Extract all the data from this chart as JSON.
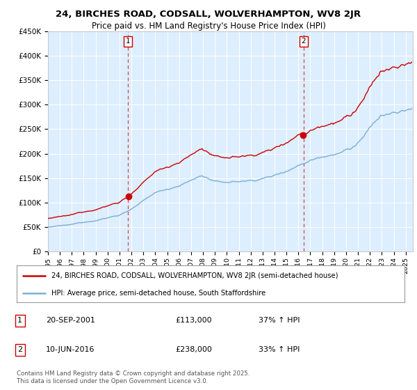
{
  "title1": "24, BIRCHES ROAD, CODSALL, WOLVERHAMPTON, WV8 2JR",
  "title2": "Price paid vs. HM Land Registry's House Price Index (HPI)",
  "legend_line1": "24, BIRCHES ROAD, CODSALL, WOLVERHAMPTON, WV8 2JR (semi-detached house)",
  "legend_line2": "HPI: Average price, semi-detached house, South Staffordshire",
  "annotation1_date": "20-SEP-2001",
  "annotation1_price": "£113,000",
  "annotation1_hpi": "37% ↑ HPI",
  "annotation2_date": "10-JUN-2016",
  "annotation2_price": "£238,000",
  "annotation2_hpi": "33% ↑ HPI",
  "sale1_year": 2001.72,
  "sale1_value": 113000,
  "sale2_year": 2016.44,
  "sale2_value": 238000,
  "year_start": 1995,
  "year_end": 2025,
  "ylim_max": 450000,
  "property_color": "#cc0000",
  "hpi_color": "#7aaed6",
  "background_color": "#ddeeff",
  "plot_bg": "#ffffff",
  "dashed_line_color": "#dd4444",
  "footer": "Contains HM Land Registry data © Crown copyright and database right 2025.\nThis data is licensed under the Open Government Licence v3.0."
}
